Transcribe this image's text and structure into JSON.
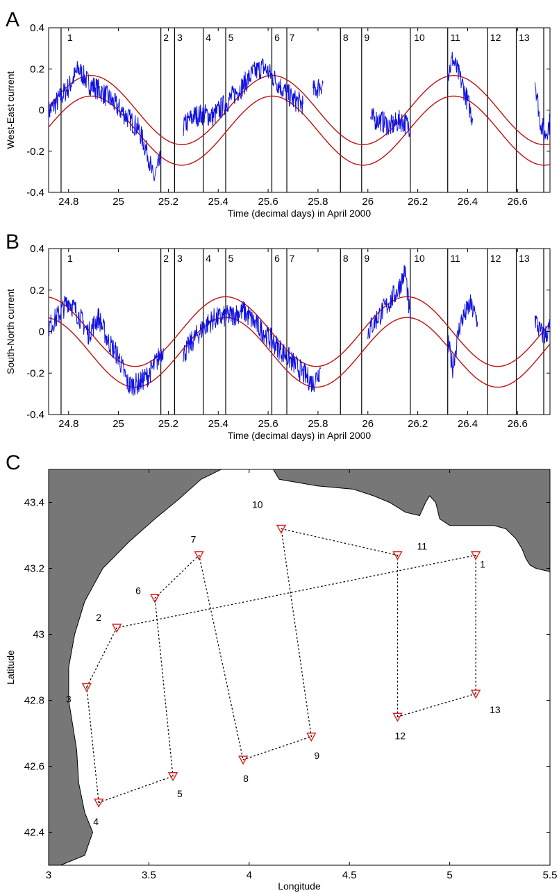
{
  "panel_letters": {
    "a": "A",
    "b": "B",
    "c": "C"
  },
  "colors": {
    "observed": "#1010e0",
    "tide": "#c01010",
    "land": "#777777",
    "station": "#e02020",
    "boundary": "#000000"
  },
  "chart_data": [
    {
      "id": "A",
      "type": "line",
      "xlabel": "Time (decimal days) in April 2000",
      "ylabel": "West-East current",
      "xlim": [
        24.72,
        26.73
      ],
      "ylim": [
        -0.4,
        0.4
      ],
      "xticks": [
        24.8,
        25,
        25.2,
        25.4,
        25.6,
        25.8,
        26,
        26.2,
        26.4,
        26.6
      ],
      "xtick_labels": [
        "24.8",
        "25",
        "25.2",
        "25.4",
        "25.6",
        "25.8",
        "26",
        "26.2",
        "26.4",
        "26.6"
      ],
      "yticks": [
        -0.4,
        -0.2,
        0,
        0.2,
        0.4
      ],
      "ytick_labels": [
        "-0.4",
        "-0.2",
        "0",
        "0.2",
        "0.4"
      ],
      "boundaries": [
        24.77,
        25.17,
        25.225,
        25.34,
        25.43,
        25.615,
        25.675,
        25.89,
        25.975,
        26.17,
        26.32,
        26.48,
        26.595,
        26.705
      ],
      "segments": [
        {
          "label": "1",
          "x": 24.795
        },
        {
          "label": "2",
          "x": 25.18
        },
        {
          "label": "3",
          "x": 25.235
        },
        {
          "label": "4",
          "x": 25.35
        },
        {
          "label": "5",
          "x": 25.44
        },
        {
          "label": "6",
          "x": 25.625
        },
        {
          "label": "7",
          "x": 25.685
        },
        {
          "label": "8",
          "x": 25.9
        },
        {
          "label": "9",
          "x": 25.985
        },
        {
          "label": "10",
          "x": 26.185
        },
        {
          "label": "11",
          "x": 26.33
        },
        {
          "label": "12",
          "x": 26.49
        },
        {
          "label": "13",
          "x": 26.605
        }
      ],
      "tide": {
        "amplitude": 0.168,
        "period_days": 0.727,
        "peak_day": 24.89,
        "upper_offset": 0.0,
        "lower_offset": -0.1
      },
      "observed": [
        [
          24.72,
          -0.01
        ],
        [
          24.76,
          0.05
        ],
        [
          24.8,
          0.11
        ],
        [
          24.84,
          0.2
        ],
        [
          24.88,
          0.13
        ],
        [
          24.92,
          0.1
        ],
        [
          24.96,
          0.06
        ],
        [
          25.0,
          0.01
        ],
        [
          25.04,
          -0.04
        ],
        [
          25.08,
          -0.09
        ],
        [
          25.12,
          -0.22
        ],
        [
          25.14,
          -0.34
        ],
        [
          25.17,
          -0.24
        ],
        null,
        [
          25.26,
          -0.08
        ],
        [
          25.3,
          -0.03
        ],
        [
          25.34,
          -0.02
        ],
        [
          25.38,
          -0.03
        ],
        [
          25.42,
          0.02
        ],
        [
          25.46,
          0.07
        ],
        [
          25.5,
          0.12
        ],
        [
          25.54,
          0.18
        ],
        [
          25.58,
          0.21
        ],
        [
          25.62,
          0.16
        ],
        [
          25.66,
          0.1
        ],
        [
          25.7,
          0.05
        ],
        [
          25.74,
          0.03
        ],
        null,
        [
          25.78,
          0.09
        ],
        [
          25.82,
          0.13
        ],
        null,
        [
          26.01,
          -0.04
        ],
        [
          26.05,
          -0.05
        ],
        [
          26.09,
          -0.08
        ],
        [
          26.13,
          -0.05
        ],
        [
          26.17,
          -0.08
        ],
        null,
        [
          26.32,
          0.17
        ],
        [
          26.34,
          0.25
        ],
        [
          26.38,
          0.12
        ],
        [
          26.42,
          -0.04
        ],
        null,
        [
          26.67,
          0.15
        ],
        [
          26.69,
          -0.05
        ],
        [
          26.71,
          -0.12
        ],
        [
          26.73,
          -0.06
        ]
      ]
    },
    {
      "id": "B",
      "type": "line",
      "xlabel": "Time (decimal days) in April 2000",
      "ylabel": "South-North current",
      "xlim": [
        24.72,
        26.73
      ],
      "ylim": [
        -0.4,
        0.4
      ],
      "xticks": [
        24.8,
        25,
        25.2,
        25.4,
        25.6,
        25.8,
        26,
        26.2,
        26.4,
        26.6
      ],
      "xtick_labels": [
        "24.8",
        "25",
        "25.2",
        "25.4",
        "25.6",
        "25.8",
        "26",
        "26.2",
        "26.4",
        "26.6"
      ],
      "yticks": [
        -0.4,
        -0.2,
        0,
        0.2,
        0.4
      ],
      "ytick_labels": [
        "-0.4",
        "-0.2",
        "0",
        "0.2",
        "0.4"
      ],
      "boundaries": [
        24.77,
        25.17,
        25.225,
        25.34,
        25.43,
        25.615,
        25.675,
        25.89,
        25.975,
        26.17,
        26.32,
        26.48,
        26.595,
        26.705
      ],
      "segments": [
        {
          "label": "1",
          "x": 24.795
        },
        {
          "label": "2",
          "x": 25.18
        },
        {
          "label": "3",
          "x": 25.235
        },
        {
          "label": "4",
          "x": 25.35
        },
        {
          "label": "5",
          "x": 25.44
        },
        {
          "label": "6",
          "x": 25.625
        },
        {
          "label": "7",
          "x": 25.685
        },
        {
          "label": "8",
          "x": 25.9
        },
        {
          "label": "9",
          "x": 25.985
        },
        {
          "label": "10",
          "x": 26.185
        },
        {
          "label": "11",
          "x": 26.33
        },
        {
          "label": "12",
          "x": 26.49
        },
        {
          "label": "13",
          "x": 26.605
        }
      ],
      "tide": {
        "amplitude": 0.168,
        "period_days": 0.727,
        "peak_day": 25.43,
        "upper_offset": 0.0,
        "lower_offset": -0.1
      },
      "observed": [
        [
          24.72,
          0.02
        ],
        [
          24.76,
          0.08
        ],
        [
          24.8,
          0.15
        ],
        [
          24.84,
          0.08
        ],
        [
          24.88,
          -0.01
        ],
        [
          24.92,
          0.07
        ],
        [
          24.96,
          -0.05
        ],
        [
          25.0,
          -0.12
        ],
        [
          25.04,
          -0.26
        ],
        [
          25.08,
          -0.25
        ],
        [
          25.12,
          -0.21
        ],
        [
          25.16,
          -0.13
        ],
        [
          25.18,
          -0.08
        ],
        null,
        [
          25.26,
          -0.11
        ],
        [
          25.3,
          -0.04
        ],
        [
          25.34,
          0.02
        ],
        [
          25.38,
          0.06
        ],
        [
          25.42,
          0.07
        ],
        [
          25.46,
          0.08
        ],
        [
          25.5,
          0.1
        ],
        [
          25.54,
          0.05
        ],
        [
          25.58,
          0.0
        ],
        [
          25.62,
          -0.05
        ],
        [
          25.66,
          -0.1
        ],
        [
          25.7,
          -0.15
        ],
        [
          25.74,
          -0.2
        ],
        [
          25.78,
          -0.25
        ],
        [
          25.81,
          -0.18
        ],
        null,
        [
          26.0,
          0.0
        ],
        [
          26.04,
          0.07
        ],
        [
          26.08,
          0.13
        ],
        [
          26.12,
          0.2
        ],
        [
          26.15,
          0.29
        ],
        [
          26.17,
          0.05
        ],
        null,
        [
          26.32,
          -0.05
        ],
        [
          26.34,
          -0.17
        ],
        [
          26.37,
          0.04
        ],
        [
          26.41,
          0.13
        ],
        [
          26.44,
          0.05
        ],
        null,
        [
          26.67,
          0.06
        ],
        [
          26.69,
          0.0
        ],
        [
          26.71,
          -0.02
        ],
        [
          26.73,
          0.02
        ]
      ]
    },
    {
      "id": "C",
      "type": "scatter",
      "xlabel": "Longitude",
      "ylabel": "Latitude",
      "xlim": [
        3.0,
        5.5
      ],
      "ylim": [
        42.3,
        43.5
      ],
      "xticks": [
        3,
        3.5,
        4,
        4.5,
        5,
        5.5
      ],
      "xtick_labels": [
        "3",
        "3.5",
        "4",
        "4.5",
        "5",
        "5.5"
      ],
      "yticks": [
        42.4,
        42.6,
        42.8,
        43,
        43.2,
        43.4
      ],
      "ytick_labels": [
        "42.4",
        "42.6",
        "42.8",
        "43",
        "43.2",
        "43.4"
      ],
      "stations": [
        {
          "label": "1",
          "lon": 5.13,
          "lat": 43.24
        },
        {
          "label": "2",
          "lon": 3.34,
          "lat": 43.02
        },
        {
          "label": "3",
          "lon": 3.19,
          "lat": 42.84
        },
        {
          "label": "4",
          "lon": 3.25,
          "lat": 42.49
        },
        {
          "label": "5",
          "lon": 3.62,
          "lat": 42.57
        },
        {
          "label": "6",
          "lon": 3.53,
          "lat": 43.11
        },
        {
          "label": "7",
          "lon": 3.75,
          "lat": 43.24
        },
        {
          "label": "8",
          "lon": 3.97,
          "lat": 42.62
        },
        {
          "label": "9",
          "lon": 4.31,
          "lat": 42.69
        },
        {
          "label": "10",
          "lon": 4.16,
          "lat": 43.32
        },
        {
          "label": "11",
          "lon": 4.74,
          "lat": 43.24
        },
        {
          "label": "12",
          "lon": 4.74,
          "lat": 42.75
        },
        {
          "label": "13",
          "lon": 5.13,
          "lat": 42.82
        }
      ],
      "track_order": [
        "1",
        "2",
        "3",
        "4",
        "5",
        "6",
        "7",
        "8",
        "9",
        "10",
        "11",
        "12",
        "13",
        "1"
      ]
    }
  ]
}
